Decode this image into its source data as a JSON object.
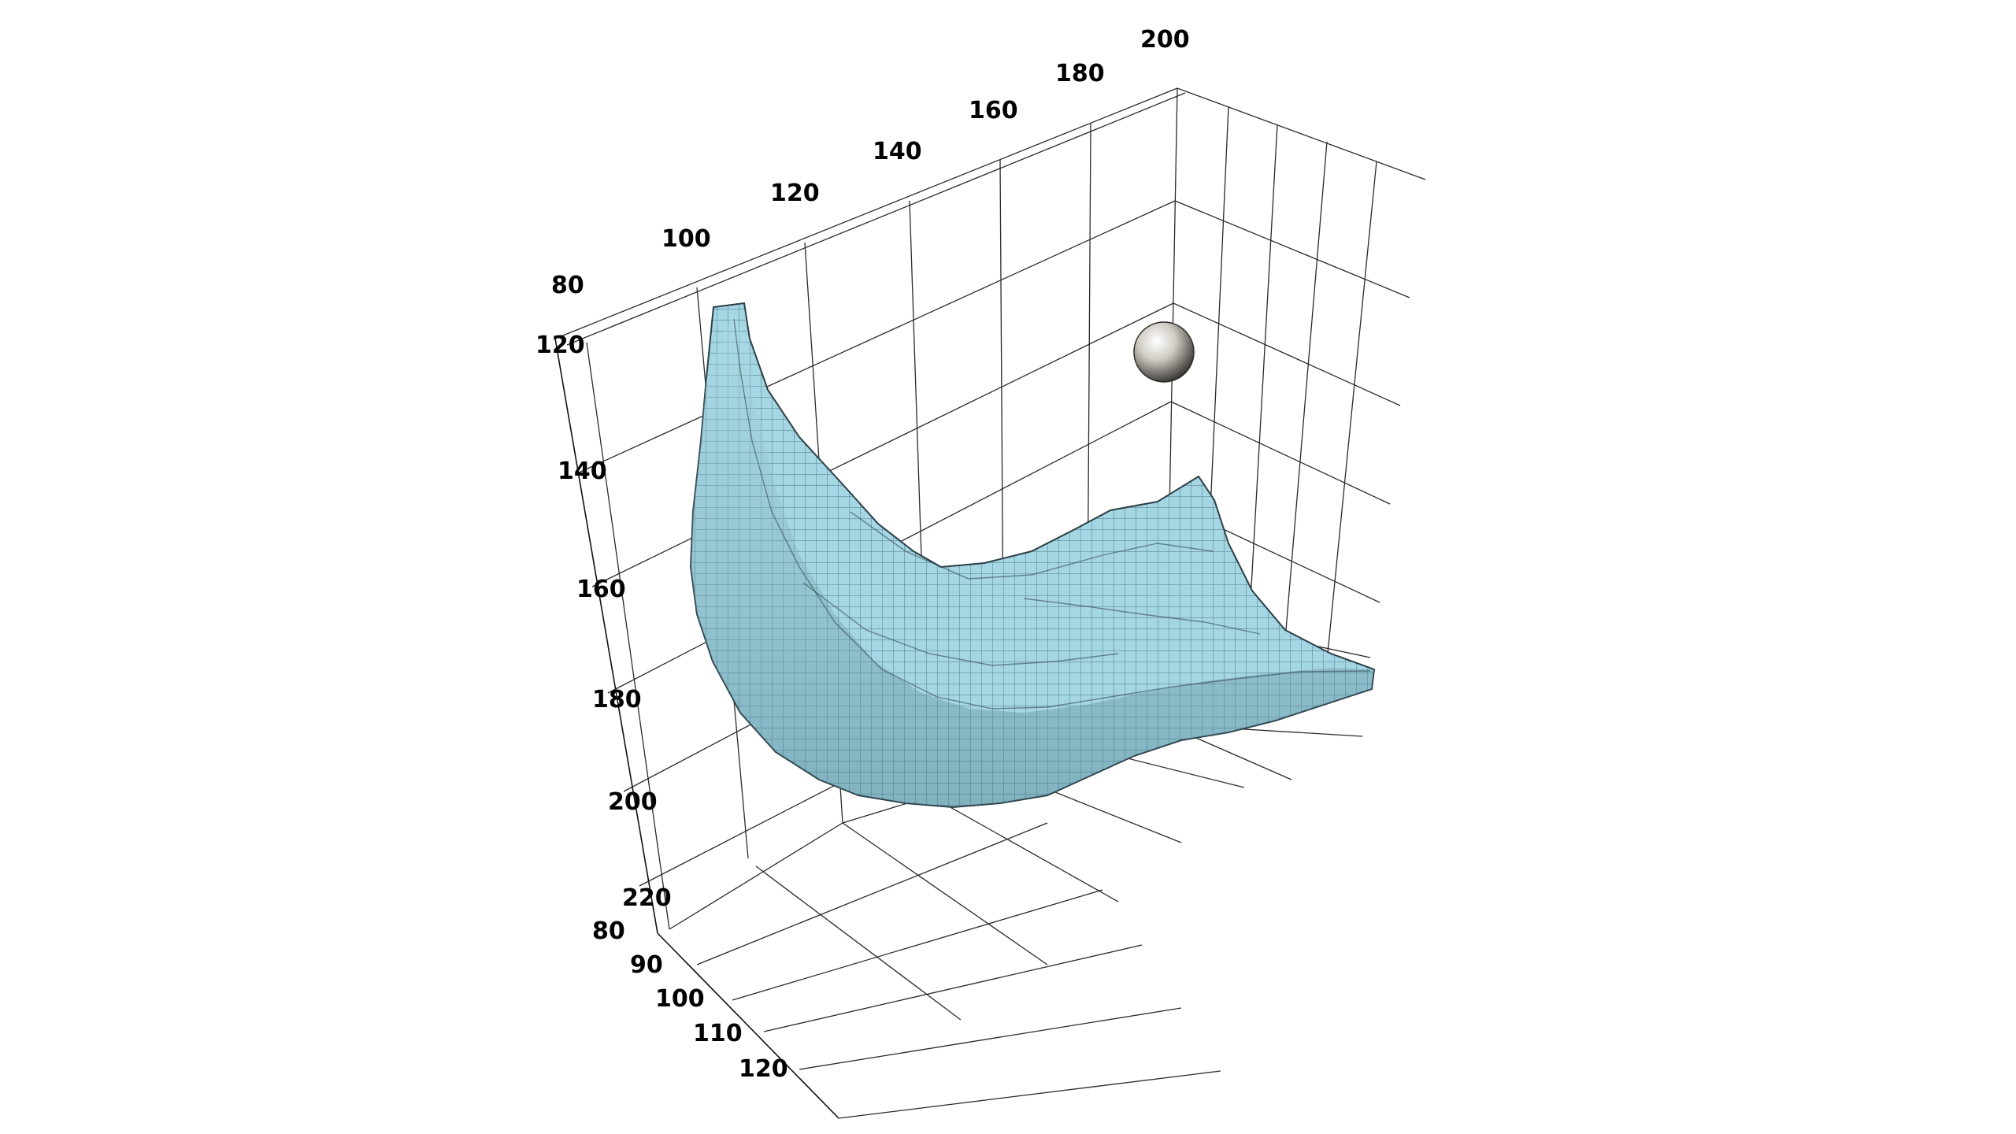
{
  "chart_data": {
    "type": "voxel-surface-3d",
    "title": "",
    "colors": {
      "surface": "#9fd2df",
      "surface_shade": "#7fb3c2",
      "surface_edge": "#2c3f47",
      "sphere": "#c8c5bf",
      "grid": "#2a2a2a",
      "background": "#ffffff"
    },
    "axes": {
      "top_axis": {
        "ticks": [
          "80",
          "100",
          "120",
          "140",
          "160",
          "180",
          "200"
        ],
        "range": [
          80,
          200
        ]
      },
      "vertical_axis": {
        "ticks": [
          "120",
          "140",
          "160",
          "180",
          "200",
          "220"
        ],
        "range": [
          120,
          220
        ]
      },
      "depth_axis": {
        "ticks": [
          "80",
          "90",
          "100",
          "110",
          "120"
        ],
        "range": [
          80,
          120
        ]
      }
    },
    "grid": true,
    "objects": [
      {
        "kind": "surface",
        "name": ""
      },
      {
        "kind": "sphere",
        "name": ""
      }
    ]
  }
}
